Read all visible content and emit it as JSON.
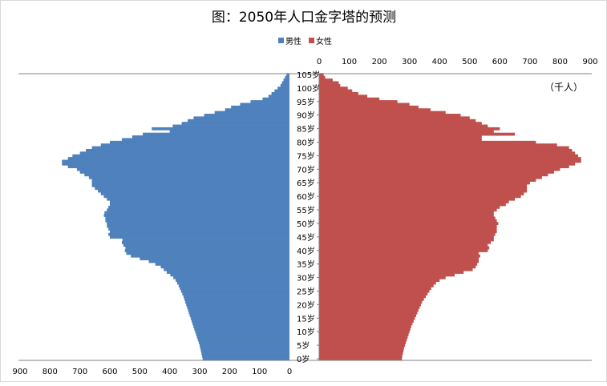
{
  "chart_data": {
    "type": "bar",
    "title": "图：2050年人口金字塔的预测",
    "unit_label": "（千人）",
    "orientation": "horizontal-population-pyramid",
    "legend": {
      "placement": "top",
      "entries": [
        "男性",
        "女性"
      ]
    },
    "colors": {
      "male": "#4f81bd",
      "female": "#c0504d",
      "axis": "#808080",
      "text": "#000000"
    },
    "age_range": [
      0,
      105
    ],
    "age_tick_labels": [
      "0岁",
      "5岁",
      "10岁",
      "15岁",
      "20岁",
      "25岁",
      "30岁",
      "35岁",
      "40岁",
      "45岁",
      "50岁",
      "55岁",
      "60岁",
      "65岁",
      "70岁",
      "75岁",
      "80岁",
      "85岁",
      "90岁",
      "95岁",
      "100岁",
      "105岁"
    ],
    "male_axis": {
      "range": [
        0,
        900
      ],
      "direction": "right-to-left",
      "tick_labels": [
        "900",
        "800",
        "700",
        "600",
        "500",
        "400",
        "300",
        "200",
        "100",
        "0"
      ]
    },
    "female_axis": {
      "range": [
        0,
        900
      ],
      "direction": "left-to-right",
      "tick_labels": [
        "0",
        "100",
        "200",
        "300",
        "400",
        "500",
        "600",
        "700",
        "800",
        "900"
      ]
    },
    "series": [
      {
        "name": "男性",
        "values": [
          290,
          292,
          294,
          296,
          298,
          300,
          303,
          306,
          309,
          312,
          315,
          318,
          321,
          324,
          327,
          330,
          333,
          336,
          339,
          342,
          345,
          348,
          351,
          354,
          358,
          362,
          366,
          370,
          375,
          380,
          388,
          398,
          410,
          420,
          430,
          448,
          470,
          500,
          530,
          545,
          550,
          548,
          555,
          560,
          558,
          600,
          605,
          600,
          605,
          610,
          610,
          615,
          615,
          620,
          618,
          610,
          605,
          600,
          600,
          610,
          620,
          630,
          640,
          650,
          660,
          660,
          660,
          670,
          685,
          700,
          710,
          740,
          760,
          760,
          740,
          725,
          700,
          680,
          660,
          630,
          600,
          560,
          525,
          490,
          400,
          460,
          390,
          360,
          340,
          320,
          285,
          250,
          215,
          195,
          165,
          130,
          90,
          70,
          60,
          50,
          40,
          30,
          25,
          20,
          15,
          10
        ]
      },
      {
        "name": "女性",
        "values": [
          275,
          276,
          278,
          280,
          282,
          285,
          288,
          291,
          294,
          297,
          300,
          303,
          306,
          310,
          314,
          318,
          322,
          326,
          330,
          334,
          338,
          342,
          348,
          354,
          360,
          366,
          372,
          380,
          388,
          400,
          420,
          450,
          480,
          510,
          520,
          525,
          530,
          530,
          535,
          530,
          560,
          565,
          560,
          570,
          580,
          580,
          585,
          590,
          590,
          590,
          595,
          590,
          585,
          580,
          580,
          590,
          600,
          620,
          630,
          650,
          670,
          680,
          690,
          690,
          690,
          700,
          720,
          740,
          760,
          780,
          800,
          830,
          850,
          870,
          870,
          860,
          850,
          840,
          830,
          790,
          720,
          540,
          540,
          650,
          580,
          600,
          560,
          540,
          520,
          500,
          470,
          420,
          370,
          330,
          300,
          260,
          200,
          160,
          130,
          110,
          95,
          70,
          65,
          45,
          20,
          15
        ]
      }
    ]
  }
}
